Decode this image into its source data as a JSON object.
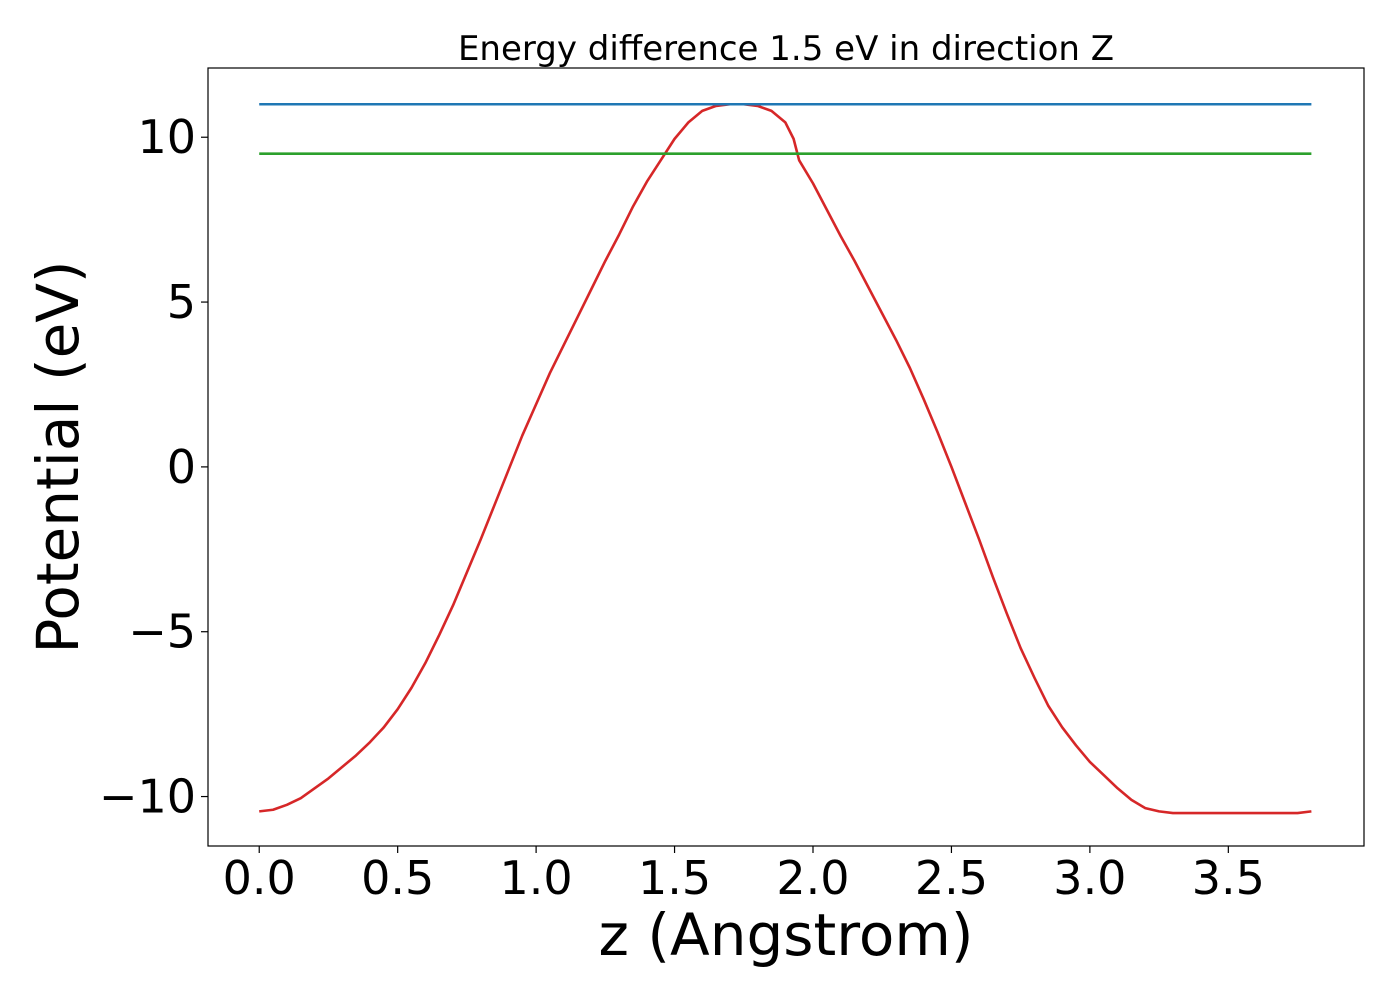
{
  "chart_data": {
    "type": "line",
    "title": "Energy difference 1.5 eV in direction Z",
    "xlabel": "z (Angstrom)",
    "ylabel": "Potential (eV)",
    "xlim": [
      -0.185,
      3.99
    ],
    "ylim": [
      -11.5,
      12.1
    ],
    "xticks": [
      0.0,
      0.5,
      1.0,
      1.5,
      2.0,
      2.5,
      3.0,
      3.5
    ],
    "xtick_labels": [
      "0.0",
      "0.5",
      "1.0",
      "1.5",
      "2.0",
      "2.5",
      "3.0",
      "3.5"
    ],
    "yticks": [
      -10,
      -5,
      0,
      5,
      10
    ],
    "ytick_labels": [
      "−10",
      "−5",
      "0",
      "5",
      "10"
    ],
    "grid": false,
    "colors": {
      "potential": "#d62728",
      "upper": "#1f77b4",
      "lower": "#2ca02c"
    },
    "series": [
      {
        "color": "#d62728",
        "x": [
          0.0,
          0.05,
          0.1,
          0.15,
          0.2,
          0.25,
          0.3,
          0.35,
          0.4,
          0.45,
          0.5,
          0.55,
          0.6,
          0.65,
          0.7,
          0.75,
          0.8,
          0.85,
          0.9,
          0.95,
          1.0,
          1.05,
          1.1,
          1.15,
          1.2,
          1.25,
          1.3,
          1.35,
          1.4,
          1.45,
          1.5,
          1.55,
          1.6,
          1.65,
          1.7,
          1.75,
          1.8,
          1.85,
          1.9,
          1.93,
          1.95,
          2.0,
          2.05,
          2.1,
          2.15,
          2.2,
          2.25,
          2.3,
          2.35,
          2.4,
          2.45,
          2.5,
          2.55,
          2.6,
          2.65,
          2.7,
          2.75,
          2.8,
          2.85,
          2.9,
          2.95,
          3.0,
          3.05,
          3.1,
          3.15,
          3.2,
          3.25,
          3.3,
          3.35,
          3.4,
          3.45,
          3.5,
          3.55,
          3.6,
          3.65,
          3.7,
          3.75,
          3.8
        ],
        "y": [
          -10.45,
          -10.4,
          -10.25,
          -10.05,
          -9.75,
          -9.45,
          -9.1,
          -8.75,
          -8.35,
          -7.9,
          -7.35,
          -6.7,
          -5.95,
          -5.1,
          -4.2,
          -3.2,
          -2.2,
          -1.15,
          -0.1,
          0.95,
          1.9,
          2.85,
          3.7,
          4.55,
          5.4,
          6.25,
          7.05,
          7.9,
          8.65,
          9.3,
          9.95,
          10.45,
          10.8,
          10.95,
          11.0,
          11.0,
          10.95,
          10.8,
          10.45,
          9.95,
          9.3,
          8.6,
          7.8,
          7.0,
          6.25,
          5.45,
          4.65,
          3.85,
          3.0,
          2.05,
          1.05,
          0.0,
          -1.1,
          -2.2,
          -3.35,
          -4.45,
          -5.5,
          -6.4,
          -7.25,
          -7.9,
          -8.45,
          -8.95,
          -9.35,
          -9.75,
          -10.1,
          -10.35,
          -10.45,
          -10.5,
          -10.5,
          -10.5,
          -10.5,
          -10.5,
          -10.5,
          -10.5,
          -10.5,
          -10.5,
          -10.5,
          -10.45
        ]
      },
      {
        "color": "#1f77b4",
        "x": [
          0.0,
          3.8
        ],
        "y": [
          11.0,
          11.0
        ]
      },
      {
        "color": "#2ca02c",
        "x": [
          0.0,
          3.8
        ],
        "y": [
          9.5,
          9.5
        ]
      }
    ]
  }
}
